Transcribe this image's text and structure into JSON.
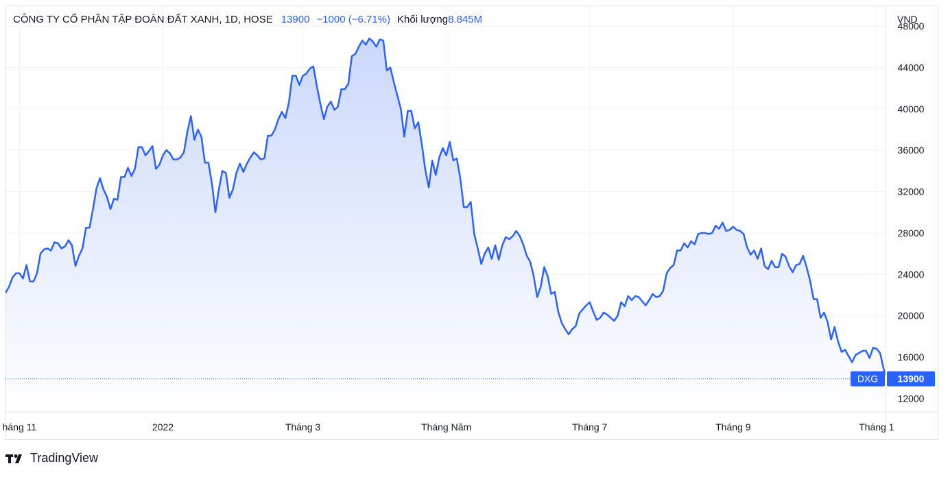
{
  "legend": {
    "title": "CÔNG TY CỔ PHẦN TẬP ĐOÀN ĐẤT XANH, 1D, HOSE",
    "last_price": "13900",
    "change": "−1000 (−6.71%)",
    "volume_label": "Khối lượng",
    "volume_value": "8.845M"
  },
  "currency": "VND",
  "price_tag": {
    "symbol": "DXG",
    "value": "13900"
  },
  "brand": "TradingView",
  "colors": {
    "line": "#2962ff",
    "fill_top": "#c9d6fb",
    "fill_bottom": "#ffffff",
    "tag_bg": "#2962ff",
    "grid": "#f0f3fa"
  },
  "chart_data": {
    "type": "area",
    "title": "",
    "xlabel": "",
    "ylabel": "",
    "ylim": [
      10700,
      48200
    ],
    "y_ticks": [
      12000,
      16000,
      20000,
      24000,
      28000,
      32000,
      36000,
      40000,
      44000,
      48000
    ],
    "x_tick_labels": [
      "háng 11",
      "2022",
      "Tháng 3",
      "Tháng Năm",
      "Tháng 7",
      "Tháng 9",
      "Tháng 1"
    ],
    "x_tick_index": [
      4,
      45,
      85,
      126,
      167,
      208,
      249
    ],
    "grid": true,
    "last_value": 13900,
    "series": [
      {
        "values": [
          22200,
          22800,
          23700,
          24100,
          24100,
          23600,
          24900,
          23300,
          23300,
          24100,
          26000,
          26400,
          26500,
          26300,
          27100,
          27000,
          26500,
          26700,
          27300,
          26800,
          24800,
          25800,
          26500,
          28500,
          28500,
          30300,
          32300,
          33300,
          32200,
          31500,
          30300,
          31300,
          31200,
          33400,
          33400,
          34300,
          33500,
          34200,
          36300,
          36300,
          35500,
          35900,
          36400,
          34200,
          34600,
          35500,
          36000,
          35700,
          35100,
          35100,
          35300,
          35800,
          37800,
          39300,
          37000,
          38000,
          37300,
          34800,
          34800,
          32800,
          30000,
          32200,
          34000,
          33800,
          31400,
          32200,
          33800,
          34700,
          33900,
          34700,
          35300,
          35800,
          35500,
          35100,
          35200,
          37400,
          37400,
          38000,
          39000,
          39700,
          39100,
          40600,
          43200,
          43200,
          42300,
          43200,
          43400,
          43900,
          44100,
          42200,
          40500,
          39000,
          40200,
          40700,
          39900,
          40200,
          41900,
          41900,
          42400,
          45100,
          45300,
          46000,
          46600,
          46200,
          46800,
          46500,
          46000,
          46700,
          46600,
          43700,
          44000,
          42600,
          41300,
          40000,
          37300,
          39800,
          39800,
          38100,
          38700,
          36600,
          34100,
          32400,
          35000,
          33600,
          35300,
          36200,
          35500,
          36800,
          35000,
          35200,
          33300,
          30500,
          30500,
          31000,
          27900,
          26500,
          25000,
          26000,
          26600,
          25500,
          26800,
          25400,
          26800,
          27600,
          27400,
          27700,
          28200,
          27700,
          26900,
          25800,
          25200,
          23800,
          21800,
          22800,
          24700,
          23800,
          22100,
          22300,
          20400,
          19300,
          18700,
          18200,
          18700,
          19000,
          20200,
          20600,
          21000,
          21300,
          20400,
          19600,
          19800,
          20300,
          20100,
          19800,
          19500,
          20000,
          21300,
          20900,
          21900,
          21500,
          21900,
          21800,
          21400,
          21000,
          21500,
          22100,
          21800,
          21900,
          22400,
          24100,
          24600,
          24900,
          26300,
          26300,
          27000,
          26600,
          27200,
          26900,
          27900,
          28000,
          28000,
          27900,
          28000,
          28700,
          28400,
          29000,
          28200,
          28300,
          28600,
          28300,
          28200,
          27900,
          26600,
          25900,
          26300,
          25500,
          26500,
          24800,
          24500,
          25300,
          24700,
          24700,
          26000,
          25700,
          24800,
          24200,
          24900,
          25000,
          25800,
          24700,
          23400,
          21600,
          21600,
          19800,
          20300,
          19400,
          17700,
          18900,
          17500,
          16500,
          16700,
          16100,
          15500,
          16200,
          16400,
          16600,
          16600,
          15900,
          16900,
          16800,
          16400,
          14900,
          13900
        ]
      }
    ]
  }
}
